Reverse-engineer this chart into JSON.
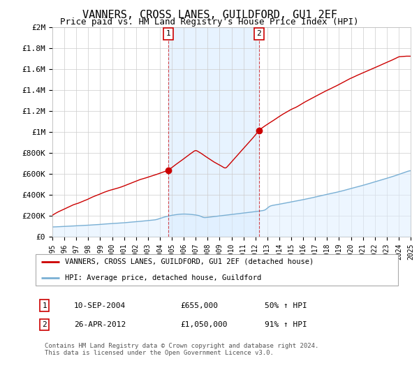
{
  "title": "VANNERS, CROSS LANES, GUILDFORD, GU1 2EF",
  "subtitle": "Price paid vs. HM Land Registry's House Price Index (HPI)",
  "legend_line1": "VANNERS, CROSS LANES, GUILDFORD, GU1 2EF (detached house)",
  "legend_line2": "HPI: Average price, detached house, Guildford",
  "footnote": "Contains HM Land Registry data © Crown copyright and database right 2024.\nThis data is licensed under the Open Government Licence v3.0.",
  "sale1_date": "10-SEP-2004",
  "sale1_price": "£655,000",
  "sale1_hpi": "50% ↑ HPI",
  "sale1_year": 2004.7,
  "sale1_value": 655000,
  "sale2_date": "26-APR-2012",
  "sale2_price": "£1,050,000",
  "sale2_hpi": "91% ↑ HPI",
  "sale2_year": 2012.3,
  "sale2_value": 1050000,
  "red_line_color": "#cc0000",
  "blue_line_color": "#7ab0d4",
  "fill_color": "#ddeeff",
  "ylim": [
    0,
    2000000
  ],
  "xlim_start": 1995,
  "xlim_end": 2025,
  "background_color": "#ffffff",
  "grid_color": "#cccccc",
  "title_fontsize": 11,
  "subtitle_fontsize": 9
}
